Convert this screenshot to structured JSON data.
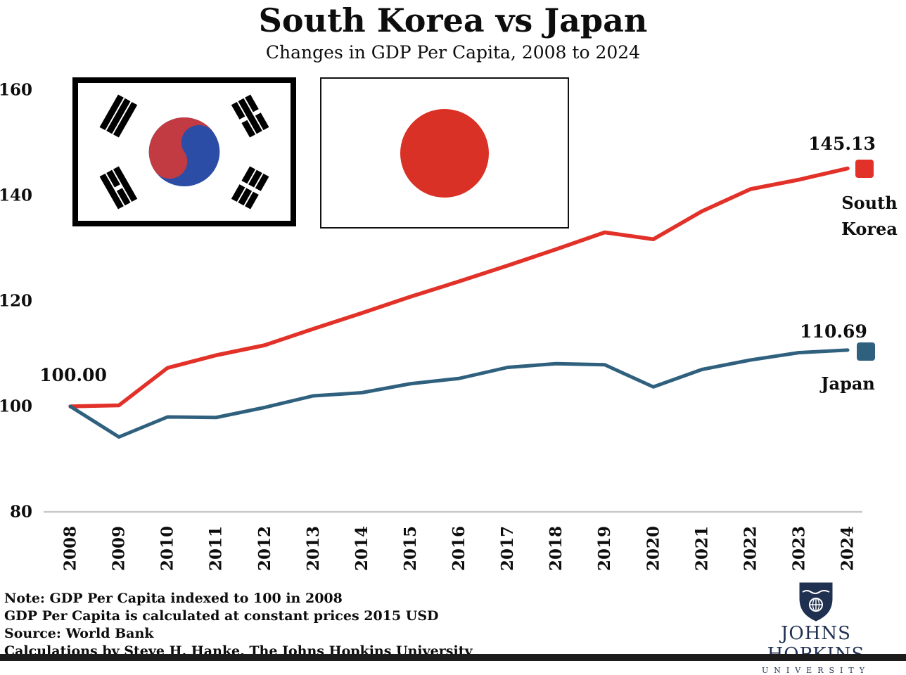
{
  "title": "South Korea vs Japan",
  "subtitle": "Changes in GDP Per Capita, 2008 to 2024",
  "colors": {
    "south_korea_line": "#e23128",
    "japan_line": "#2f607e",
    "axis_line": "#c9c9c9",
    "jhu_navy": "#1f3050"
  },
  "chart_data": {
    "type": "line",
    "title": "South Korea vs Japan",
    "subtitle": "Changes in GDP Per Capita, 2008 to 2024",
    "x": [
      2008,
      2009,
      2010,
      2011,
      2012,
      2013,
      2014,
      2015,
      2016,
      2017,
      2018,
      2019,
      2020,
      2021,
      2022,
      2023,
      2024
    ],
    "series": [
      {
        "name": "South Korea",
        "color": "#e23128",
        "stroke_width": 5.5,
        "end_label": "145.13",
        "values": [
          100.0,
          100.2,
          107.3,
          109.7,
          111.6,
          114.7,
          117.7,
          120.8,
          123.7,
          126.7,
          129.8,
          133.0,
          131.7,
          137.0,
          141.2,
          143.0,
          145.13
        ]
      },
      {
        "name": "Japan",
        "color": "#2f607e",
        "stroke_width": 5,
        "end_label": "110.69",
        "values": [
          100.0,
          94.2,
          98.0,
          97.9,
          99.8,
          102.0,
          102.6,
          104.3,
          105.3,
          107.4,
          108.1,
          107.9,
          103.7,
          107.0,
          108.8,
          110.2,
          110.69
        ]
      }
    ],
    "ylim": [
      80,
      160
    ],
    "yticks": [
      80,
      100,
      120,
      140,
      160
    ],
    "grid": false,
    "legend_position": "right-of-line-ends",
    "index_note": "indexed to 100 in 2008"
  },
  "annotations": {
    "start_value": "100.00",
    "south_korea_value": "145.13",
    "south_korea_name_line1": "South",
    "south_korea_name_line2": "Korea",
    "japan_value": "110.69",
    "japan_name": "Japan"
  },
  "notes": [
    "Note: GDP Per Capita indexed to 100 in 2008",
    "GDP Per Capita is calculated at constant prices 2015 USD",
    "Source: World Bank",
    "Calculations by Steve H. Hanke, The Johns Hopkins University"
  ],
  "logo": {
    "name_line": "JOHNS HOPKINS",
    "university_line": "UNIVERSITY"
  }
}
